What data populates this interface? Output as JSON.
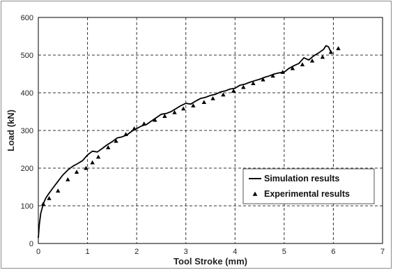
{
  "chart_data": {
    "type": "line",
    "xlabel": "Tool Stroke (mm)",
    "ylabel": "Load (kN)",
    "xlim": [
      0,
      7
    ],
    "ylim": [
      0,
      600
    ],
    "xticks": [
      0,
      1,
      2,
      3,
      4,
      5,
      6,
      7
    ],
    "yticks": [
      0,
      100,
      200,
      300,
      400,
      500,
      600
    ],
    "grid": true,
    "legend_position": "bottom-right",
    "series": [
      {
        "name": "Simulation results",
        "style": "line",
        "color": "#000000",
        "x": [
          0,
          0.02,
          0.05,
          0.1,
          0.15,
          0.2,
          0.3,
          0.4,
          0.5,
          0.6,
          0.7,
          0.8,
          0.9,
          1.0,
          1.1,
          1.2,
          1.3,
          1.4,
          1.5,
          1.6,
          1.7,
          1.8,
          1.9,
          2.0,
          2.1,
          2.2,
          2.3,
          2.4,
          2.5,
          2.6,
          2.7,
          2.8,
          2.9,
          3.0,
          3.1,
          3.2,
          3.3,
          3.4,
          3.5,
          3.6,
          3.7,
          3.8,
          3.9,
          4.0,
          4.1,
          4.2,
          4.3,
          4.4,
          4.5,
          4.6,
          4.7,
          4.8,
          4.9,
          5.0,
          5.1,
          5.2,
          5.3,
          5.4,
          5.5,
          5.6,
          5.7,
          5.8,
          5.85,
          5.9,
          5.95
        ],
        "y": [
          15,
          50,
          80,
          105,
          120,
          130,
          148,
          165,
          182,
          195,
          205,
          212,
          220,
          235,
          245,
          243,
          252,
          262,
          270,
          280,
          283,
          288,
          298,
          305,
          312,
          316,
          325,
          334,
          343,
          345,
          350,
          358,
          366,
          372,
          370,
          378,
          385,
          388,
          393,
          396,
          402,
          405,
          410,
          412,
          420,
          423,
          428,
          432,
          436,
          441,
          445,
          450,
          453,
          455,
          465,
          472,
          478,
          493,
          487,
          498,
          506,
          515,
          525,
          522,
          508
        ]
      },
      {
        "name": "Experimental results",
        "style": "marker",
        "marker": "triangle",
        "color": "#000000",
        "x": [
          0.1,
          0.22,
          0.4,
          0.6,
          0.78,
          0.97,
          1.1,
          1.22,
          1.42,
          1.58,
          1.78,
          1.95,
          2.15,
          2.37,
          2.57,
          2.77,
          2.95,
          3.15,
          3.37,
          3.55,
          3.76,
          3.97,
          4.17,
          4.37,
          4.57,
          4.77,
          4.97,
          5.17,
          5.37,
          5.57,
          5.78,
          5.95,
          6.1
        ],
        "y": [
          105,
          120,
          140,
          170,
          190,
          200,
          215,
          230,
          255,
          272,
          290,
          305,
          318,
          328,
          338,
          348,
          358,
          366,
          375,
          385,
          395,
          405,
          415,
          425,
          435,
          445,
          455,
          465,
          475,
          485,
          495,
          508,
          518
        ]
      }
    ]
  }
}
